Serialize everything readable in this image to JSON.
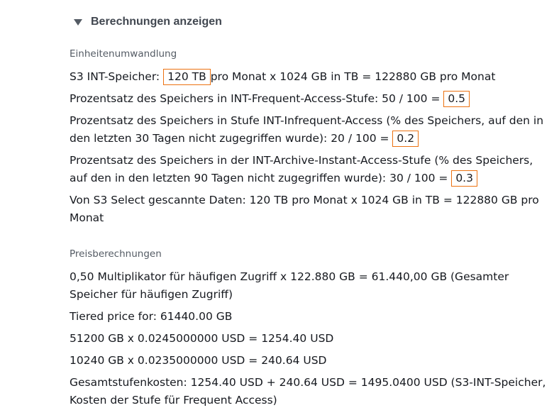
{
  "expander": {
    "label": "Berechnungen anzeigen"
  },
  "conversion": {
    "title": "Einheitenumwandlung",
    "s3_storage": {
      "prefix": "S3 INT-Speicher: ",
      "value": "120 TB",
      "suffix": "pro Monat x 1024 GB in TB = 122880 GB pro Monat"
    },
    "frequent_pct": {
      "prefix": "Prozentsatz des Speichers in INT-Frequent-Access-Stufe: 50 / 100 = ",
      "value": "0.5"
    },
    "infrequent_pct": {
      "prefix": "Prozentsatz des Speichers in Stufe INT-Infrequent-Access (% des Speichers, auf den in den letzten 30 Tagen nicht zugegriffen wurde): 20 / 100 = ",
      "value": "0.2"
    },
    "archive_pct": {
      "prefix": "Prozentsatz des Speichers in der INT-Archive-Instant-Access-Stufe (% des Speichers, auf den in den letzten 90 Tagen nicht zugegriffen wurde): 30 / 100 = ",
      "value": "0.3"
    },
    "select_scanned": "Von S3 Select gescannte Daten: 120 TB pro Monat x 1024 GB in TB = 122880 GB pro Monat"
  },
  "prices": {
    "title": "Preisberechnungen",
    "lines": [
      "0,50 Multiplikator für häufigen Zugriff x 122.880 GB = 61.440,00 GB (Gesamter Speicher für häufigen Zugriff)",
      "Tiered price for: 61440.00 GB",
      "51200 GB x 0.0245000000 USD = 1254.40 USD",
      "10240 GB x 0.0235000000 USD = 240.64 USD",
      "Gesamtstufenkosten: 1254.40 USD + 240.64 USD = 1495.0400 USD (S3-INT-Speicher, Kosten der Stufe für Frequent Access)"
    ]
  },
  "colors": {
    "highlight_border": "#ec7211",
    "secondary_text": "#545b64",
    "body_text": "#16191f"
  }
}
